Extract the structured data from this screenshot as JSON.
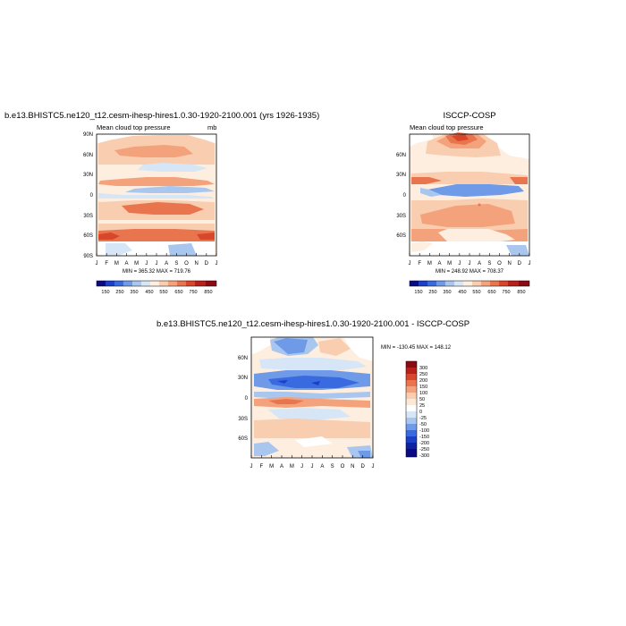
{
  "chart_data": [
    {
      "type": "heatmap",
      "title": "b.e13.BHISTC5.ne120_t12.cesm-ihesp-hires1.0.30-1920-2100.001 (yrs 1926-1935)",
      "subtitle_left": "Mean cloud top pressure",
      "units": "mb",
      "x_ticks": [
        "J",
        "F",
        "M",
        "A",
        "M",
        "J",
        "J",
        "A",
        "S",
        "O",
        "N",
        "D",
        "J"
      ],
      "y_ticks": [
        "90N",
        "60N",
        "30N",
        "0",
        "30S",
        "60S",
        "90S"
      ],
      "stats": "MIN = 365.32 MAX = 719.76",
      "colorbar_levels": [
        "150",
        "250",
        "350",
        "450",
        "550",
        "650",
        "750",
        "850"
      ]
    },
    {
      "type": "heatmap",
      "title": "ISCCP-COSP",
      "subtitle_left": "Mean cloud top pressure",
      "x_ticks": [
        "J",
        "F",
        "M",
        "A",
        "M",
        "J",
        "J",
        "A",
        "S",
        "O",
        "N",
        "D",
        "J"
      ],
      "y_ticks": [
        "60N",
        "30N",
        "0",
        "30S",
        "60S"
      ],
      "stats": "MIN = 248.92 MAX = 708.37",
      "colorbar_levels": [
        "150",
        "250",
        "350",
        "450",
        "550",
        "650",
        "750",
        "850"
      ]
    },
    {
      "type": "heatmap",
      "title": "b.e13.BHISTC5.ne120_t12.cesm-ihesp-hires1.0.30-1920-2100.001 - ISCCP-COSP",
      "x_ticks": [
        "J",
        "F",
        "M",
        "A",
        "M",
        "J",
        "J",
        "A",
        "S",
        "O",
        "N",
        "D",
        "J"
      ],
      "y_ticks": [
        "60N",
        "30N",
        "0",
        "30S",
        "60S"
      ],
      "stats": "MIN = -130.45 MAX = 148.12",
      "colorbar_levels": [
        "300",
        "250",
        "200",
        "150",
        "100",
        "50",
        "25",
        "0",
        "-25",
        "-50",
        "-100",
        "-150",
        "-200",
        "-250",
        "-300"
      ]
    }
  ],
  "colors": {
    "abs_scale": [
      "#0a0a84",
      "#1c3fc8",
      "#3a6ae0",
      "#6e9ae8",
      "#a9c6ee",
      "#d6e6f6",
      "#fdeee0",
      "#f9cdb0",
      "#f3a27c",
      "#e8754d",
      "#d8462c",
      "#b8201a",
      "#8c0a12"
    ],
    "diff_scale": [
      "#8c0a12",
      "#b8201a",
      "#d8462c",
      "#e8754d",
      "#f3a27c",
      "#f9cdb0",
      "#fde8d6",
      "#ffffff",
      "#d6e6f6",
      "#a9c6ee",
      "#6e9ae8",
      "#3a6ae0",
      "#1c3fc8",
      "#0d22a0",
      "#0a0a84"
    ]
  }
}
